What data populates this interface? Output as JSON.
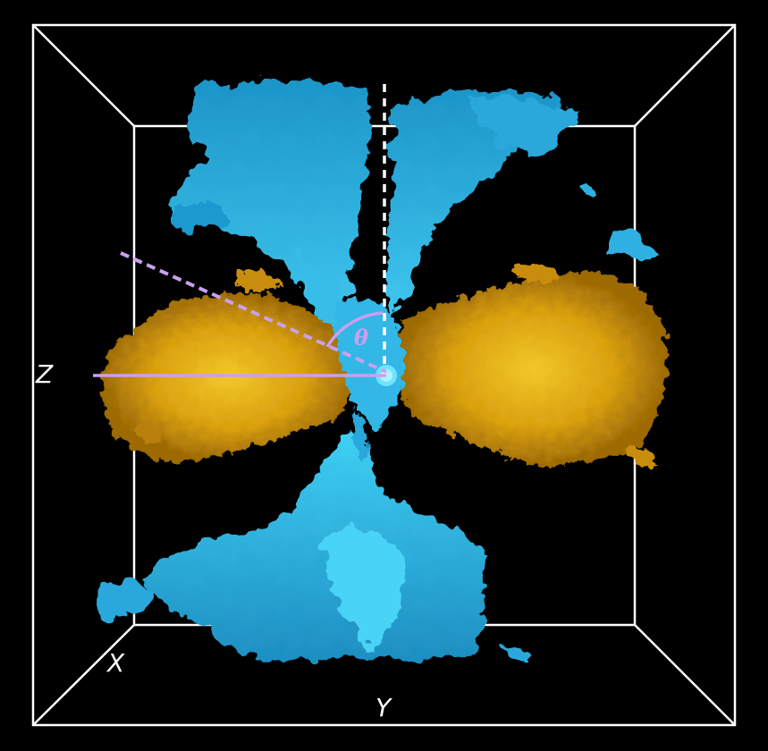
{
  "axes": {
    "z_label": "Z",
    "x_label": "X",
    "y_label": "Y"
  },
  "annotation": {
    "angle_symbol": "θ"
  },
  "colors": {
    "background": "#000000",
    "box_frame": "#ffffff",
    "outflow": "#29b6e6",
    "outflow_highlight": "#6fe3ff",
    "disk": "#d9a00e",
    "disk_highlight": "#f2c72a",
    "angle_marker": "#c9a0ee",
    "reference_line": "#ffffff"
  },
  "structures": {
    "outflow_lobes": "outflow-icon",
    "disk": "disk-icon",
    "central_source": "source-icon"
  }
}
